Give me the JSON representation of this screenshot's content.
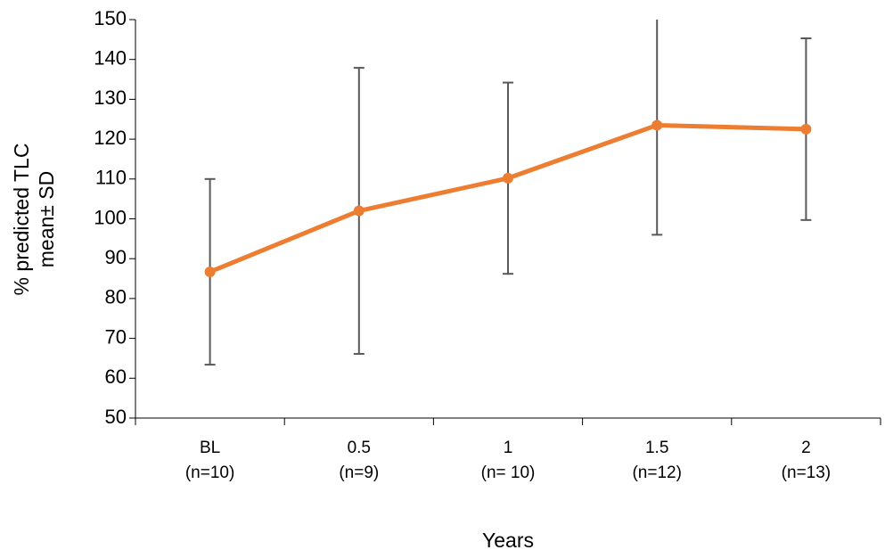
{
  "chart_data": {
    "type": "line",
    "ylabel": [
      "% predicted TLC",
      "mean± SD"
    ],
    "xlabel": "Years",
    "categories": [
      "BL",
      "0.5",
      "1",
      "1.5",
      "2"
    ],
    "sample_sizes": [
      "(n=10)",
      "(n=9)",
      "(n= 10)",
      "(n=12)",
      "(n=13)"
    ],
    "values": [
      86.7,
      102,
      110.2,
      123.5,
      122.5
    ],
    "errors": [
      23.3,
      35.9,
      24,
      27.5,
      22.8
    ],
    "color": "#ed7d31",
    "error_color": "#595959",
    "ylim": [
      50,
      150
    ],
    "yticks": [
      50,
      60,
      70,
      80,
      90,
      100,
      110,
      120,
      130,
      140,
      150
    ]
  }
}
